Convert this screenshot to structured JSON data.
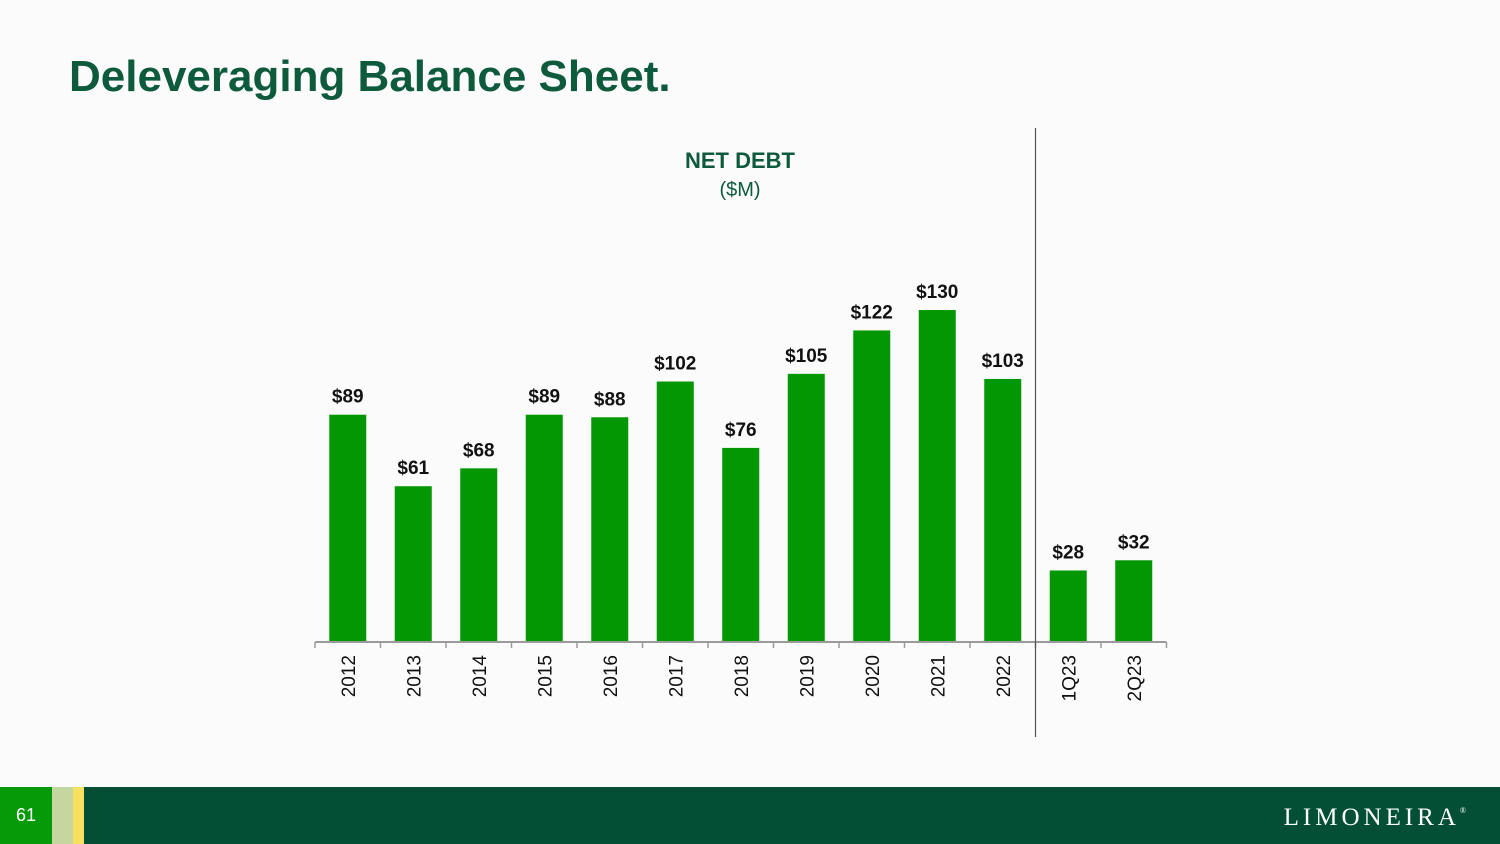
{
  "slide": {
    "title": "Deleveraging Balance Sheet.",
    "page_number": "61",
    "logo_text": "LIMONEIRA",
    "logo_mark": "®"
  },
  "colors": {
    "bar": "#039803",
    "title": "#0d5a3c",
    "footer": "#034f35"
  },
  "chart_data": {
    "type": "bar",
    "title": "NET DEBT",
    "subtitle": "($M)",
    "xlabel": "",
    "ylabel": "",
    "categories": [
      "2012",
      "2013",
      "2014",
      "2015",
      "2016",
      "2017",
      "2018",
      "2019",
      "2020",
      "2021",
      "2022",
      "1Q23",
      "2Q23"
    ],
    "values": [
      89,
      61,
      68,
      89,
      88,
      102,
      76,
      105,
      122,
      130,
      103,
      28,
      32
    ],
    "data_labels": [
      "$89",
      "$61",
      "$68",
      "$89",
      "$88",
      "$102",
      "$76",
      "$105",
      "$122",
      "$130",
      "$103",
      "$28",
      "$32"
    ],
    "ylim": [
      0,
      130
    ],
    "grid": false,
    "legend": "none",
    "separator_after": "2022"
  }
}
